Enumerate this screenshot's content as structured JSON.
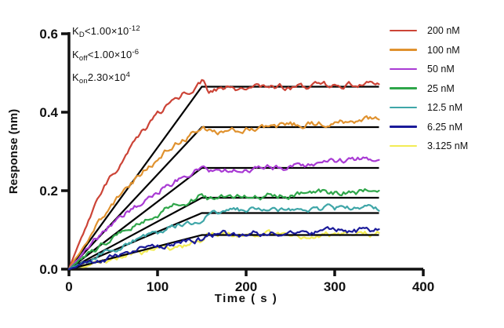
{
  "figure": {
    "background": "#ffffff",
    "axis_color": "#111111",
    "fit_line_color": "#000000"
  },
  "kinetics": {
    "kd": {
      "base": "K",
      "sub": "D",
      "rel": "<",
      "value": "1.00×10",
      "exp": "-12"
    },
    "koff": {
      "base": "K",
      "sub": "off",
      "rel": "<",
      "value": "1.00×10",
      "exp": "-6"
    },
    "kon": {
      "base": "K",
      "sub": "on",
      "rel": "=",
      "value": "2.30×10",
      "exp": "4"
    }
  },
  "chart_data": {
    "type": "line",
    "title": "",
    "xlabel": "Time ( s )",
    "ylabel": "Response (nm)",
    "xlim": [
      0,
      400
    ],
    "ylim": [
      0,
      0.6
    ],
    "xticks": [
      "0",
      "100",
      "200",
      "300",
      "400"
    ],
    "yticks": [
      "0.0",
      "0.2",
      "0.4",
      "0.6"
    ],
    "grid": false,
    "legend_position": "right-outside",
    "association_end_s": 150,
    "trace_end_s": 350,
    "description": "BLI/SPR sensorgram: colored noisy traces per analyte concentration with black 1:1 kinetic fit lines (linear rise to plateau at t=150 s, flat dissociation to t=350 s).",
    "series": [
      {
        "name": "200 nM",
        "color": "#cc4437",
        "k_obs": 0.01,
        "fit_plateau": 0.465,
        "assoc_end": 0.478,
        "dissoc_start": 0.457,
        "dissoc_end": 0.471
      },
      {
        "name": "100 nM",
        "color": "#e0922f",
        "k_obs": 0.0075,
        "fit_plateau": 0.362,
        "assoc_end": 0.36,
        "dissoc_start": 0.349,
        "dissoc_end": 0.384
      },
      {
        "name": "50 nM",
        "color": "#a93bd4",
        "k_obs": 0.006,
        "fit_plateau": 0.258,
        "assoc_end": 0.262,
        "dissoc_start": 0.244,
        "dissoc_end": 0.283
      },
      {
        "name": "25 nM",
        "color": "#2fa64a",
        "k_obs": 0.005,
        "fit_plateau": 0.182,
        "assoc_end": 0.19,
        "dissoc_start": 0.181,
        "dissoc_end": 0.2
      },
      {
        "name": "12.5 nM",
        "color": "#3fa6a8",
        "k_obs": 0.0045,
        "fit_plateau": 0.143,
        "assoc_end": 0.127,
        "dissoc_start": 0.148,
        "dissoc_end": 0.157
      },
      {
        "name": "6.25 nM",
        "color": "#1a1a99",
        "k_obs": 0.004,
        "fit_plateau": 0.087,
        "assoc_end": 0.076,
        "dissoc_start": 0.089,
        "dissoc_end": 0.1
      },
      {
        "name": "3.125 nM",
        "color": "#f2ec55",
        "k_obs": 0.0035,
        "fit_plateau": null,
        "assoc_end": 0.069,
        "dissoc_start": 0.085,
        "dissoc_end": 0.091
      }
    ]
  }
}
